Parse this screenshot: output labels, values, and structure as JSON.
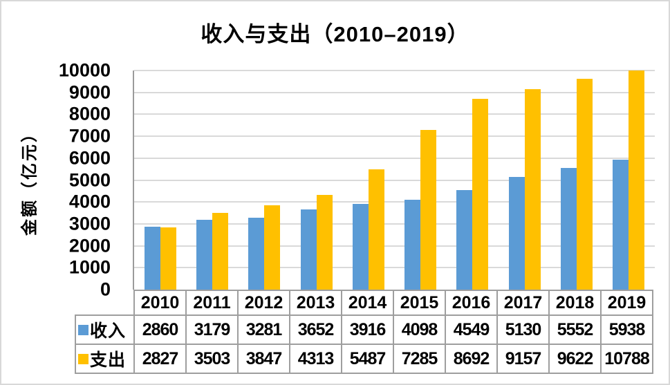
{
  "canvas": {
    "background": "#ffffff",
    "border_color": "#d8d8d8"
  },
  "chart_data": {
    "type": "bar",
    "title": "收入与支出（2010–2019）",
    "ylabel": "金额（亿元）",
    "xlabel": "",
    "categories": [
      "2010",
      "2011",
      "2012",
      "2013",
      "2014",
      "2015",
      "2016",
      "2017",
      "2018",
      "2019"
    ],
    "series": [
      {
        "name": "收入",
        "color": "#5b9bd5",
        "values": [
          2860,
          3179,
          3281,
          3652,
          3916,
          4098,
          4549,
          5130,
          5552,
          5938
        ]
      },
      {
        "name": "支出",
        "color": "#ffc000",
        "values": [
          2827,
          3503,
          3847,
          4313,
          5487,
          7285,
          8692,
          9157,
          9622,
          10788
        ]
      }
    ],
    "ylim": [
      0,
      10000
    ],
    "ytick_step": 1000,
    "grid": true,
    "gridline_color": "#d9d9d9",
    "axis_color": "#9b9b9b",
    "legend_position": "data-table-left",
    "data_table_shown": true
  }
}
